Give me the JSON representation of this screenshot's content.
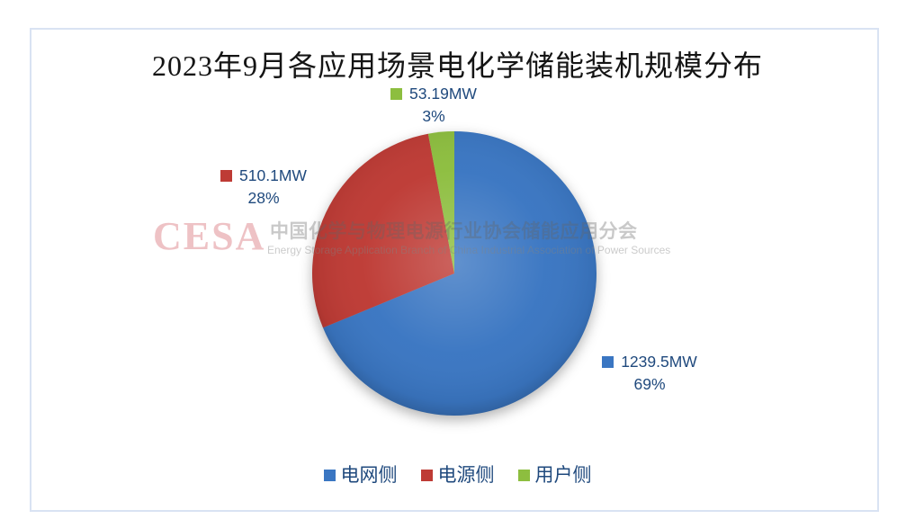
{
  "chart_data": {
    "type": "pie",
    "title": "2023年9月各应用场景电化学储能装机规模分布",
    "unit": "MW",
    "categories": [
      "电网侧",
      "电源侧",
      "用户侧"
    ],
    "values": [
      1239.5,
      510.1,
      53.19
    ],
    "percents": [
      69,
      28,
      3
    ],
    "colors": [
      "#3a76c2",
      "#be3b35",
      "#8dbe3f"
    ],
    "start_angle_deg": 0,
    "direction": "clockwise",
    "legend_position": "bottom",
    "grid": false,
    "labels": [
      {
        "value": "1239.5MW",
        "percent": "69%"
      },
      {
        "value": "510.1MW",
        "percent": "28%"
      },
      {
        "value": "53.19MW",
        "percent": "3%"
      }
    ]
  },
  "legend": {
    "items": [
      {
        "label": "电网侧",
        "color": "#3a76c2"
      },
      {
        "label": "电源侧",
        "color": "#be3b35"
      },
      {
        "label": "用户侧",
        "color": "#8dbe3f"
      }
    ]
  },
  "watermark": {
    "logo": "CESA",
    "cn": "中国化学与物理电源行业协会储能应用分会",
    "en": "Energy Storage Application Branch of China Industrial Association of Power Sources"
  }
}
